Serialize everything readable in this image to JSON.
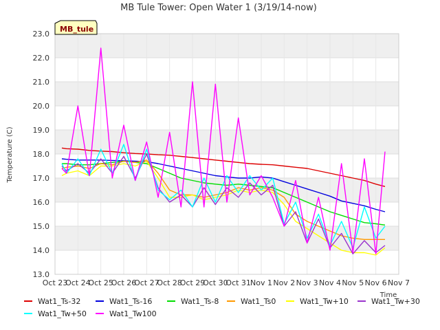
{
  "chart_data": {
    "type": "line",
    "title": "MB Tule Tower: Open Water 1 (3/19/14-now)",
    "xlabel": "Time",
    "ylabel": "Temperature (C)",
    "badge": "MB_tule",
    "ylim": [
      13.0,
      23.0
    ],
    "xlim": [
      0,
      15
    ],
    "y_ticks": [
      "13.0",
      "14.0",
      "15.0",
      "16.0",
      "17.0",
      "18.0",
      "19.0",
      "20.0",
      "21.0",
      "22.0",
      "23.0"
    ],
    "x_ticks": [
      "Oct 23",
      "Oct 24",
      "Oct 25",
      "Oct 26",
      "Oct 27",
      "Oct 28",
      "Oct 29",
      "Oct 30",
      "Oct 31",
      "Nov 1",
      "Nov 2",
      "Nov 3",
      "Nov 4",
      "Nov 5",
      "Nov 6",
      "Nov 7"
    ],
    "x": [
      0.3,
      0.5,
      1.0,
      1.5,
      2.0,
      2.5,
      3.0,
      3.5,
      4.0,
      4.5,
      5.0,
      5.5,
      6.0,
      6.5,
      7.0,
      7.5,
      8.0,
      8.5,
      9.0,
      9.5,
      10.0,
      10.5,
      11.0,
      11.5,
      12.0,
      12.5,
      13.0,
      13.5,
      14.0,
      14.4
    ],
    "series": [
      {
        "name": "Wat1_Ts-32",
        "color": "#dd0000",
        "values": [
          18.25,
          18.22,
          18.2,
          18.15,
          18.12,
          18.1,
          18.05,
          18.02,
          18.0,
          17.97,
          17.95,
          17.9,
          17.85,
          17.8,
          17.75,
          17.7,
          17.65,
          17.6,
          17.57,
          17.55,
          17.5,
          17.45,
          17.4,
          17.3,
          17.2,
          17.1,
          17.0,
          16.9,
          16.75,
          16.65
        ]
      },
      {
        "name": "Wat1_Ts-16",
        "color": "#0000dd",
        "values": [
          17.8,
          17.78,
          17.75,
          17.75,
          17.75,
          17.73,
          17.72,
          17.7,
          17.68,
          17.6,
          17.5,
          17.4,
          17.3,
          17.2,
          17.1,
          17.05,
          17.0,
          17.0,
          17.05,
          17.0,
          16.85,
          16.7,
          16.55,
          16.4,
          16.25,
          16.05,
          15.95,
          15.85,
          15.7,
          15.6
        ]
      },
      {
        "name": "Wat1_Ts-8",
        "color": "#00dd00",
        "values": [
          17.6,
          17.6,
          17.55,
          17.55,
          17.6,
          17.65,
          17.7,
          17.65,
          17.6,
          17.4,
          17.2,
          17.0,
          16.9,
          16.8,
          16.75,
          16.7,
          16.75,
          16.7,
          16.65,
          16.6,
          16.4,
          16.2,
          16.0,
          15.8,
          15.6,
          15.45,
          15.3,
          15.15,
          15.1,
          15.05
        ]
      },
      {
        "name": "Wat1_Ts0",
        "color": "#ff9900",
        "values": [
          17.4,
          17.45,
          17.5,
          17.4,
          17.6,
          17.55,
          17.7,
          17.65,
          17.75,
          17.2,
          16.5,
          16.3,
          16.3,
          16.2,
          16.3,
          16.4,
          16.6,
          16.5,
          16.6,
          16.5,
          16.2,
          15.5,
          15.2,
          15.0,
          14.8,
          14.6,
          14.5,
          14.45,
          14.45,
          14.45
        ]
      },
      {
        "name": "Wat1_Tw+10",
        "color": "#ffff00",
        "values": [
          17.1,
          17.2,
          17.3,
          17.1,
          17.5,
          17.5,
          17.6,
          17.5,
          17.7,
          17.0,
          16.2,
          16.2,
          16.3,
          16.1,
          16.2,
          16.3,
          16.5,
          16.4,
          16.5,
          16.4,
          15.9,
          15.2,
          14.9,
          14.6,
          14.3,
          14.0,
          13.9,
          13.9,
          13.8,
          14.1
        ]
      },
      {
        "name": "Wat1_Tw+30",
        "color": "#9933cc",
        "values": [
          17.5,
          17.3,
          17.6,
          17.2,
          17.8,
          17.2,
          17.9,
          17.0,
          18.0,
          16.6,
          16.0,
          16.3,
          15.8,
          16.6,
          15.9,
          16.6,
          16.2,
          16.8,
          16.3,
          16.7,
          15.0,
          15.6,
          14.3,
          15.3,
          14.1,
          14.7,
          13.85,
          14.4,
          13.9,
          14.2
        ]
      },
      {
        "name": "Wat1_Tw+50",
        "color": "#00ffff",
        "values": [
          17.6,
          17.2,
          17.8,
          17.1,
          18.2,
          17.2,
          18.4,
          16.9,
          18.2,
          16.5,
          16.1,
          16.5,
          15.8,
          17.0,
          16.0,
          17.1,
          16.4,
          17.1,
          16.5,
          17.0,
          15.1,
          16.0,
          14.5,
          15.5,
          14.2,
          15.2,
          14.1,
          15.8,
          14.5,
          15.0
        ]
      },
      {
        "name": "Wat1_Tw100",
        "color": "#ff00ff",
        "values": [
          17.4,
          17.2,
          20.0,
          17.1,
          22.4,
          17.0,
          19.2,
          16.9,
          18.5,
          16.2,
          18.9,
          15.8,
          21.0,
          15.8,
          20.9,
          16.0,
          19.5,
          16.3,
          17.1,
          16.2,
          15.0,
          16.9,
          14.3,
          16.2,
          14.0,
          17.6,
          13.9,
          17.8,
          13.85,
          18.1
        ]
      }
    ]
  }
}
